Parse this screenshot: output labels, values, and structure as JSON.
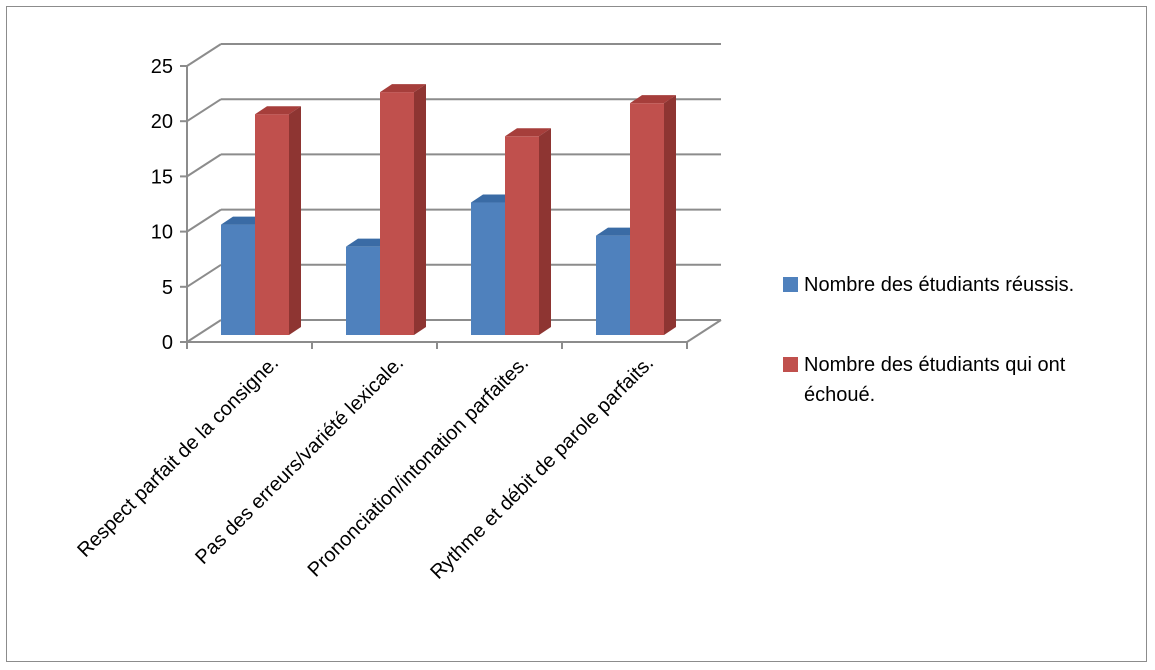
{
  "chart_data": {
    "type": "bar",
    "style": "3d-clustered-column",
    "categories": [
      "Respect parfait de la consigne.",
      "Pas des erreurs/variété lexicale.",
      "Prononciation/intonation parfaites.",
      "Rythme et débit de parole parfaits."
    ],
    "series": [
      {
        "name": "Nombre des étudiants réussis.",
        "values": [
          10,
          8,
          12,
          9
        ],
        "color": "#4F81BD",
        "color_top": "#3A6BA5",
        "color_side": "#2F5A8C"
      },
      {
        "name": "Nombre des étudiants qui ont échoué.",
        "values": [
          20,
          22,
          18,
          21
        ],
        "color": "#C0504D",
        "color_top": "#A63E3B",
        "color_side": "#8E3532"
      }
    ],
    "ylim": [
      0,
      25
    ],
    "yticks": [
      0,
      5,
      10,
      15,
      20,
      25
    ],
    "grid": true,
    "legend_position": "right",
    "legend_lines": [
      [
        "Nombre des étudiants réussis."
      ],
      [
        "Nombre des étudiants qui ont",
        "échoué."
      ]
    ]
  }
}
